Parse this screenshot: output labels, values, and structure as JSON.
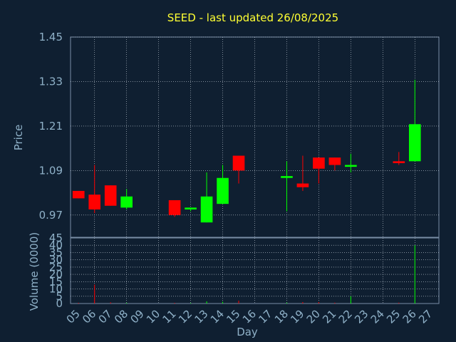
{
  "chart_data": [
    {
      "type": "candlestick",
      "title": "SEED - last updated 26/08/2025",
      "ylabel": "Price",
      "ylim": [
        0.91,
        1.45
      ],
      "yticks": [
        "1.45",
        "1.33",
        "1.21",
        "1.09",
        "0.97"
      ],
      "ytick_values": [
        1.45,
        1.33,
        1.21,
        1.09,
        0.97
      ],
      "grid": true,
      "up_color": "#00ff00",
      "down_color": "#ff0000",
      "candles": [
        {
          "day": "05",
          "open": 1.035,
          "high": 1.035,
          "low": 1.015,
          "close": 1.015
        },
        {
          "day": "06",
          "open": 1.025,
          "high": 1.105,
          "low": 0.975,
          "close": 0.985
        },
        {
          "day": "07",
          "open": 1.05,
          "high": 1.05,
          "low": 0.995,
          "close": 0.995
        },
        {
          "day": "08",
          "open": 0.99,
          "high": 1.04,
          "low": 0.985,
          "close": 1.02
        },
        {
          "day": "11",
          "open": 1.01,
          "high": 1.01,
          "low": 0.965,
          "close": 0.97
        },
        {
          "day": "12",
          "open": 0.985,
          "high": 0.99,
          "low": 0.98,
          "close": 0.99
        },
        {
          "day": "13",
          "open": 0.95,
          "high": 1.085,
          "low": 0.95,
          "close": 1.02
        },
        {
          "day": "14",
          "open": 1.0,
          "high": 1.105,
          "low": 1.0,
          "close": 1.07
        },
        {
          "day": "15",
          "open": 1.13,
          "high": 1.13,
          "low": 1.055,
          "close": 1.09
        },
        {
          "day": "18",
          "open": 1.07,
          "high": 1.115,
          "low": 0.98,
          "close": 1.075
        },
        {
          "day": "19",
          "open": 1.055,
          "high": 1.13,
          "low": 1.035,
          "close": 1.045
        },
        {
          "day": "20",
          "open": 1.125,
          "high": 1.125,
          "low": 1.055,
          "close": 1.095
        },
        {
          "day": "21",
          "open": 1.125,
          "high": 1.125,
          "low": 1.09,
          "close": 1.105
        },
        {
          "day": "22",
          "open": 1.1,
          "high": 1.135,
          "low": 1.085,
          "close": 1.105
        },
        {
          "day": "25",
          "open": 1.115,
          "high": 1.14,
          "low": 1.105,
          "close": 1.11
        },
        {
          "day": "26",
          "open": 1.115,
          "high": 1.335,
          "low": 1.115,
          "close": 1.215
        }
      ]
    },
    {
      "type": "bar",
      "ylabel": "Volume (0000)",
      "ylim": [
        0,
        45
      ],
      "yticks": [
        "45",
        "40",
        "35",
        "30",
        "25",
        "20",
        "15",
        "10",
        "5",
        "0"
      ],
      "ytick_values": [
        45,
        40,
        35,
        30,
        25,
        20,
        15,
        10,
        5,
        0
      ],
      "xlabel": "Day",
      "categories": [
        "05",
        "06",
        "07",
        "08",
        "09",
        "10",
        "11",
        "12",
        "13",
        "14",
        "15",
        "16",
        "17",
        "18",
        "19",
        "20",
        "21",
        "22",
        "23",
        "24",
        "25",
        "26",
        "27"
      ],
      "values": [
        0.5,
        13,
        0.8,
        0.5,
        0,
        0,
        0.5,
        0.4,
        1.5,
        1.2,
        2.0,
        0,
        0,
        0.6,
        1.0,
        1.0,
        0.6,
        5.0,
        0,
        0,
        0.6,
        40,
        0
      ],
      "colors": [
        "red",
        "red",
        "red",
        "green",
        "none",
        "none",
        "red",
        "green",
        "green",
        "green",
        "red",
        "none",
        "none",
        "green",
        "red",
        "red",
        "red",
        "green",
        "none",
        "none",
        "red",
        "green",
        "none"
      ]
    }
  ]
}
